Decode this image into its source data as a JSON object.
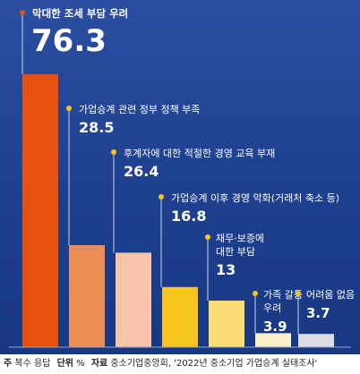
{
  "chart_data": {
    "type": "bar",
    "categories": [
      "막대한 조세 부담 우려",
      "가업승계 관련 정부 정책 부족",
      "후계자에 대한 적절한 경영 교육 부재",
      "가업승계 이후 경영 악화(거래처 축소 등)",
      "채무·보증에 대한 부담",
      "가족 갈등 우려",
      "어려움 없음"
    ],
    "values": [
      76.3,
      28.5,
      26.4,
      16.8,
      13,
      3.9,
      3.7
    ],
    "value_labels": [
      "76.3",
      "28.5",
      "26.4",
      "16.8",
      "13",
      "3.9",
      "3.7"
    ],
    "label_lines": [
      [
        "막대한 조세 부담 우려"
      ],
      [
        "가업승계 관련 정부 정책 부족"
      ],
      [
        "후계자에 대한 적절한 경영 교육 부재"
      ],
      [
        "가업승계 이후 경영 악화(거래처 축소 등)"
      ],
      [
        "채무·보증에",
        "대한 부담"
      ],
      [
        "가족 갈등",
        "우려"
      ],
      [
        "어려움 없음"
      ]
    ],
    "colors": [
      "#e8500e",
      "#ee8c55",
      "#f7c4aa",
      "#f5c51e",
      "#f9dc72",
      "#fbf0c9",
      "#dcdde3"
    ],
    "ylim": [
      0,
      80
    ],
    "grid": false,
    "legend": "none"
  },
  "footer": {
    "note_label": "주",
    "note_text": "복수 응답",
    "unit_label": "단위",
    "unit_text": "%",
    "source_label": "자료",
    "source_text": "중소기업중앙회, '2022년 중소기업 가업승계 실태조사'"
  }
}
